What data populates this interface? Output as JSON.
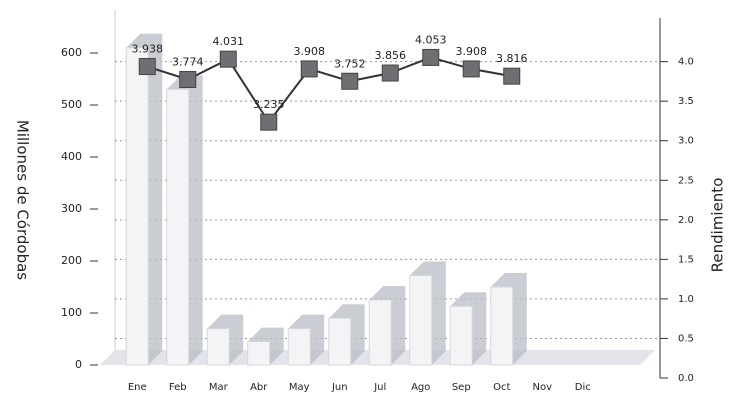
{
  "chart_data": {
    "type": "bar_line",
    "y_label": "Millones de Córdobas",
    "y2_label": "Rendimiento",
    "categories": [
      "Ene",
      "Feb",
      "Mar",
      "Abr",
      "May",
      "Jun",
      "Jul",
      "Ago",
      "Sep",
      "Oct",
      "Nov",
      "Dic"
    ],
    "series": [
      {
        "name": "Millones de Córdobas",
        "type": "bar",
        "color": "#f4f4f6",
        "values": [
          610,
          530,
          70,
          45,
          70,
          90,
          125,
          172,
          113,
          150,
          null,
          null
        ]
      },
      {
        "name": "Rendimiento",
        "type": "line",
        "axis": "y2",
        "color": "#333333",
        "marker_color": "#6f6f73",
        "values": [
          3.938,
          3.774,
          4.031,
          3.235,
          3.908,
          3.752,
          3.856,
          4.053,
          3.908,
          3.816,
          null,
          null
        ]
      }
    ],
    "ylim": [
      0,
      650
    ],
    "yticks": [
      0,
      100,
      200,
      300,
      400,
      500,
      600
    ],
    "y2lim": [
      0,
      4.4
    ],
    "y2ticks": [
      {
        "value": 0,
        "label": "0.0"
      },
      0.5,
      {
        "value": 1,
        "label": "1.0"
      },
      1.5,
      {
        "value": 2,
        "label": "2.0"
      },
      2.5,
      {
        "value": 3,
        "label": "3.0"
      },
      3.5,
      {
        "value": 4,
        "label": "4.0"
      }
    ],
    "grid": true
  }
}
